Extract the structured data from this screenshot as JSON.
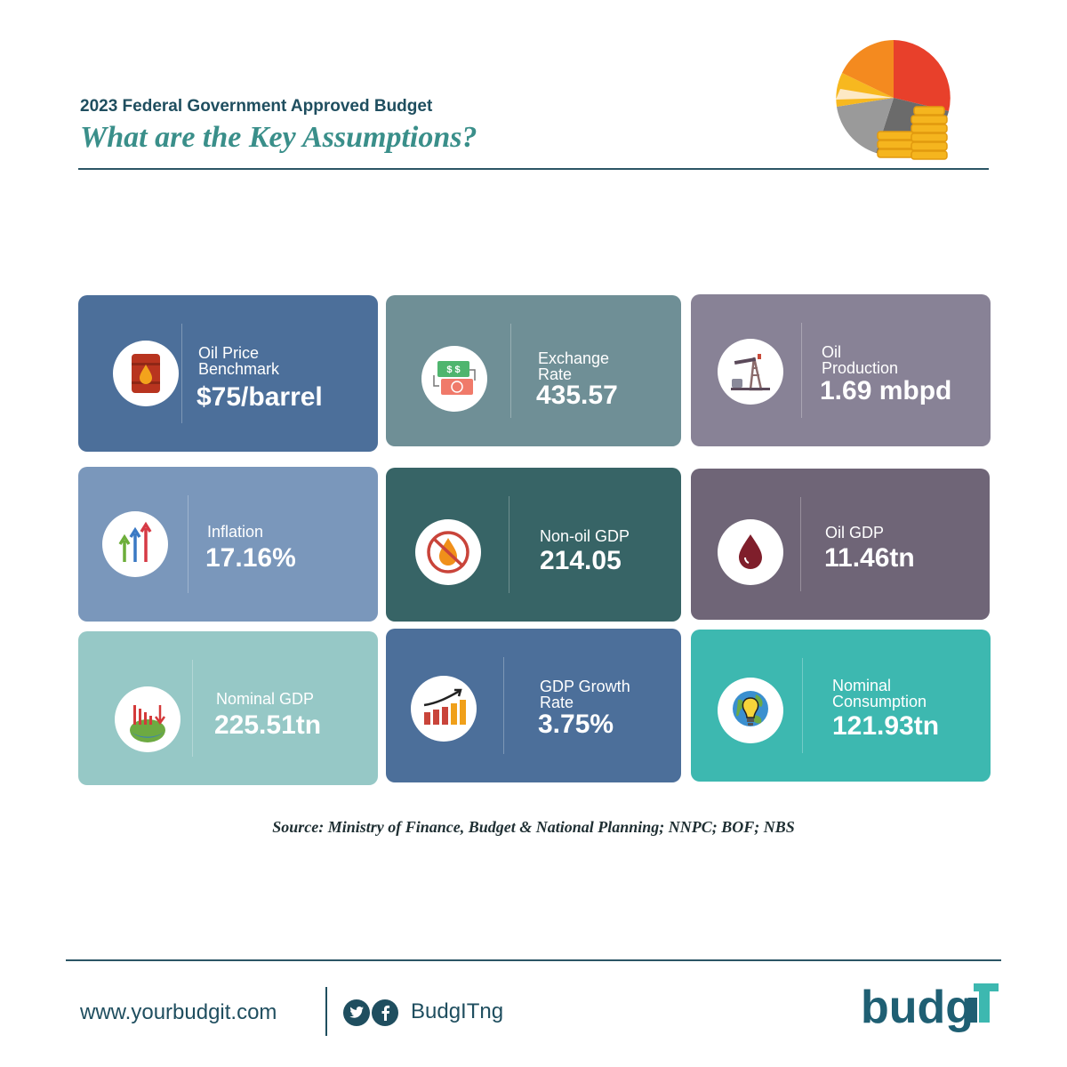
{
  "header": {
    "subtitle": "2023 Federal Government Approved Budget",
    "title": "What are the Key Assumptions?"
  },
  "cards": [
    {
      "label": "Oil Price\nBenchmark",
      "value": "$75/barrel",
      "color": "#4c6f9a",
      "icon": "oil-barrel-icon"
    },
    {
      "label": "Exchange\nRate",
      "value": "435.57",
      "color": "#6f8f96",
      "icon": "currency-exchange-icon"
    },
    {
      "label": "Oil\nProduction",
      "value": "1.69 mbpd",
      "color": "#888296",
      "icon": "oil-pump-icon"
    },
    {
      "label": "Inflation",
      "value": "17.16%",
      "color": "#7a97bb",
      "icon": "rising-arrows-icon"
    },
    {
      "label": "Non-oil GDP",
      "value": "214.05",
      "color": "#376466",
      "icon": "no-oil-icon"
    },
    {
      "label": "Oil GDP",
      "value": "11.46tn",
      "color": "#6f6577",
      "icon": "oil-drop-icon"
    },
    {
      "label": "Nominal GDP",
      "value": "225.51tn",
      "color": "#96c8c6",
      "icon": "declining-bars-earth-icon"
    },
    {
      "label": "GDP Growth\nRate",
      "value": "3.75%",
      "color": "#4c6f9a",
      "icon": "growth-chart-icon"
    },
    {
      "label": "Nominal\nConsumption",
      "value": "121.93tn",
      "color": "#3db8b0",
      "icon": "globe-lightbulb-icon"
    }
  ],
  "source": "Source: Ministry of Finance, Budget & National Planning; NNPC; BOF; NBS",
  "footer": {
    "website": "www.yourbudgit.com",
    "handle": "BudgITng",
    "logo_text": "budgiT",
    "social": [
      "twitter-icon",
      "facebook-icon"
    ]
  }
}
